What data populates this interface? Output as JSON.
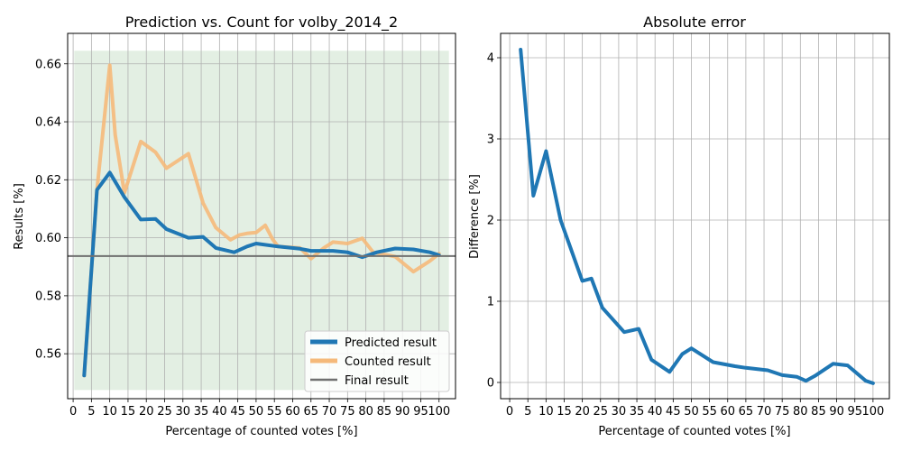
{
  "chart_data": [
    {
      "type": "line",
      "title": "Prediction vs. Count for volby_2014_2",
      "xlabel": "Percentage of counted votes [%]",
      "ylabel": "Results [%]",
      "xlim": [
        -1.5,
        104.5
      ],
      "ylim": [
        0.5445,
        0.6705
      ],
      "xticks": [
        "0",
        "5",
        "10",
        "15",
        "20",
        "25",
        "30",
        "35",
        "40",
        "45",
        "50",
        "55",
        "60",
        "65",
        "70",
        "75",
        "80",
        "85",
        "90",
        "95",
        "100"
      ],
      "yticks": [
        "0.56",
        "0.58",
        "0.60",
        "0.62",
        "0.64",
        "0.66"
      ],
      "grid": true,
      "legend_position": "lower-right",
      "shaded_band": {
        "y0": 0.5475,
        "y1": 0.6645,
        "x0": 0.3,
        "x1": 102.7,
        "color": "#c8e0c8"
      },
      "final_result_line": {
        "name": "Final result",
        "y": 0.5937,
        "color": "#707070"
      },
      "series": [
        {
          "name": "Predicted result",
          "color": "#1f77b4",
          "x": [
            3,
            6.5,
            10,
            14,
            18.5,
            22.5,
            25.5,
            31.5,
            35.5,
            39,
            44,
            47.5,
            50,
            56,
            62,
            65,
            71,
            75,
            79,
            83,
            88,
            93,
            97.5,
            100
          ],
          "y": [
            0.5525,
            0.6165,
            0.6225,
            0.614,
            0.6063,
            0.6065,
            0.603,
            0.6,
            0.6003,
            0.5965,
            0.595,
            0.597,
            0.598,
            0.597,
            0.5962,
            0.5955,
            0.5955,
            0.595,
            0.5933,
            0.595,
            0.5963,
            0.596,
            0.595,
            0.594
          ]
        },
        {
          "name": "Counted result",
          "color": "#f5b97a",
          "x": [
            3,
            6.5,
            10,
            11.5,
            14,
            18.5,
            22.5,
            25.5,
            31.5,
            35.5,
            39,
            43,
            45.5,
            47.5,
            50,
            52.5,
            54.5,
            56,
            62,
            65,
            68.5,
            71,
            75,
            79,
            82,
            88,
            93,
            97.5,
            100
          ],
          "y": [
            0.5525,
            0.6165,
            0.6595,
            0.6355,
            0.6155,
            0.6332,
            0.6295,
            0.624,
            0.629,
            0.612,
            0.6035,
            0.5993,
            0.601,
            0.6015,
            0.6018,
            0.6043,
            0.5995,
            0.597,
            0.5965,
            0.5928,
            0.5965,
            0.5985,
            0.598,
            0.5998,
            0.595,
            0.5935,
            0.5883,
            0.592,
            0.5945
          ]
        }
      ]
    },
    {
      "type": "line",
      "title": "Absolute error",
      "xlabel": "Percentage of counted votes [%]",
      "ylabel": "Difference [%]",
      "xlim": [
        -2.5,
        104.5
      ],
      "ylim": [
        -0.2,
        4.3
      ],
      "xticks": [
        "0",
        "5",
        "10",
        "15",
        "20",
        "25",
        "30",
        "35",
        "40",
        "45",
        "50",
        "55",
        "60",
        "65",
        "70",
        "75",
        "80",
        "85",
        "90",
        "95",
        "100"
      ],
      "yticks": [
        "0",
        "1",
        "2",
        "3",
        "4"
      ],
      "grid": true,
      "series": [
        {
          "color": "#1f77b4",
          "x": [
            3,
            6.5,
            10,
            14,
            20,
            22.5,
            25.5,
            31.5,
            35.5,
            39,
            44,
            47.5,
            50,
            56,
            62,
            65,
            71,
            75,
            79,
            81.5,
            84,
            89,
            93,
            98,
            100
          ],
          "y": [
            4.1,
            2.3,
            2.85,
            2.0,
            1.25,
            1.28,
            0.92,
            0.62,
            0.66,
            0.28,
            0.13,
            0.35,
            0.42,
            0.25,
            0.2,
            0.18,
            0.15,
            0.09,
            0.07,
            0.02,
            0.08,
            0.23,
            0.21,
            0.02,
            -0.01
          ]
        }
      ]
    }
  ]
}
